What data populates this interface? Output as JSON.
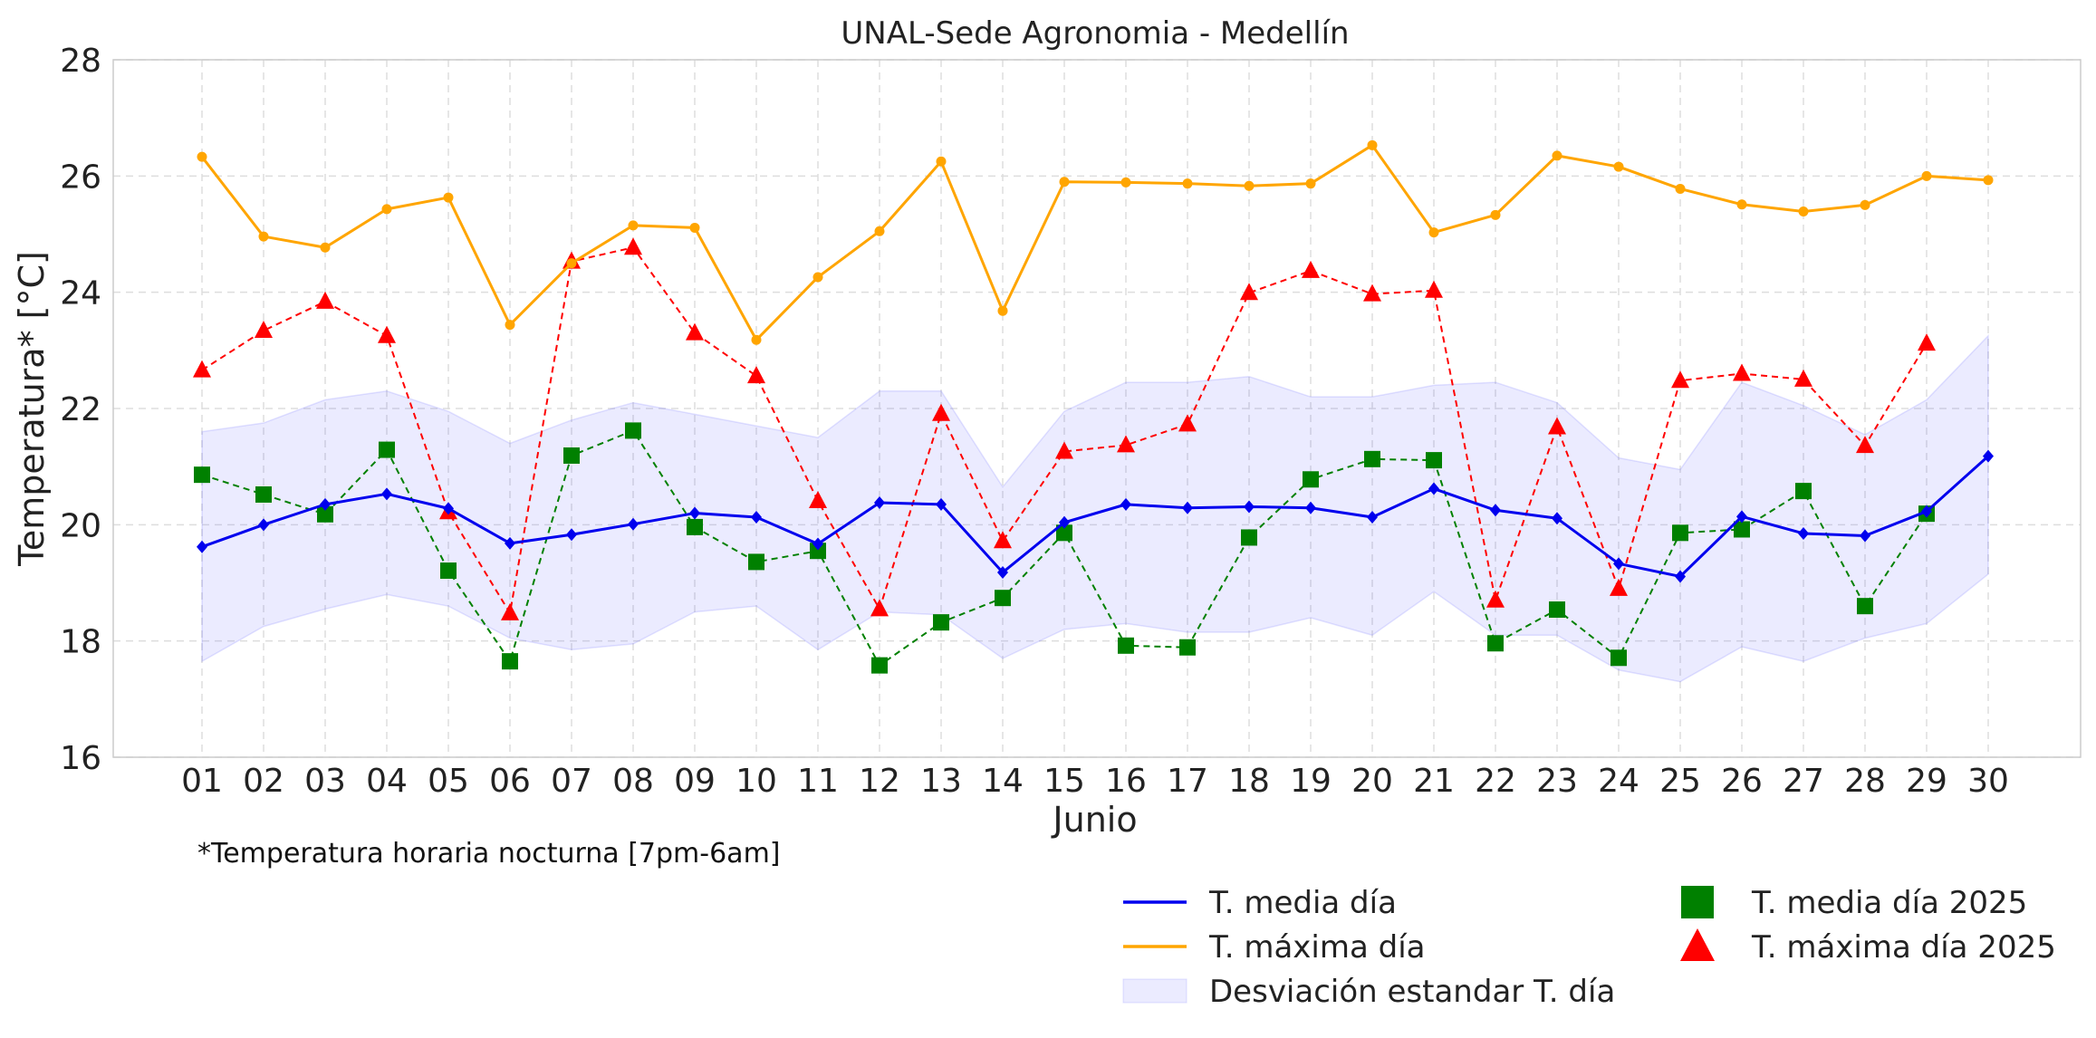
{
  "chart_data": {
    "type": "line",
    "title": "UNAL-Sede Agronomia - Medellín",
    "xlabel": "Junio",
    "ylabel": "Temperatura* [°C]",
    "footnote": "*Temperatura horaria nocturna [7pm-6am]",
    "ylim": [
      16,
      28
    ],
    "yticks": [
      "16",
      "18",
      "20",
      "22",
      "24",
      "26",
      "28"
    ],
    "grid": true,
    "legend_position": "bottom-right",
    "categories": [
      "01",
      "02",
      "03",
      "04",
      "05",
      "06",
      "07",
      "08",
      "09",
      "10",
      "11",
      "12",
      "13",
      "14",
      "15",
      "16",
      "17",
      "18",
      "19",
      "20",
      "21",
      "22",
      "23",
      "24",
      "25",
      "26",
      "27",
      "28",
      "29",
      "30"
    ],
    "band": {
      "name": "Desviación estandar T. día",
      "color": "#6666ff",
      "upper": [
        21.6,
        21.75,
        22.15,
        22.3,
        21.95,
        21.4,
        21.8,
        22.1,
        21.9,
        21.7,
        21.5,
        22.3,
        22.3,
        20.65,
        21.95,
        22.45,
        22.45,
        22.55,
        22.2,
        22.2,
        22.4,
        22.45,
        22.1,
        21.15,
        20.95,
        22.45,
        22.05,
        21.55,
        22.15,
        23.25
      ],
      "lower": [
        17.65,
        18.25,
        18.55,
        18.8,
        18.6,
        18.05,
        17.85,
        17.95,
        18.5,
        18.6,
        17.85,
        18.5,
        18.45,
        17.7,
        18.2,
        18.3,
        18.15,
        18.15,
        18.4,
        18.1,
        18.85,
        18.1,
        18.1,
        17.5,
        17.3,
        17.9,
        17.65,
        18.05,
        18.3,
        19.15
      ]
    },
    "series": [
      {
        "name": "T. media día",
        "color": "#0000ee",
        "style": "solid",
        "marker": "diamond",
        "values": [
          19.62,
          20.0,
          20.35,
          20.53,
          20.28,
          19.68,
          19.83,
          20.01,
          20.2,
          20.13,
          19.67,
          20.38,
          20.35,
          19.18,
          20.04,
          20.35,
          20.29,
          20.31,
          20.29,
          20.13,
          20.62,
          20.25,
          20.11,
          19.33,
          19.11,
          20.14,
          19.85,
          19.81,
          20.23,
          21.18
        ]
      },
      {
        "name": "T. máxima día",
        "color": "#ffa500",
        "style": "solid",
        "marker": "circle",
        "values": [
          26.33,
          24.96,
          24.77,
          25.43,
          25.63,
          23.44,
          24.5,
          25.15,
          25.11,
          23.18,
          24.26,
          25.05,
          26.25,
          23.68,
          25.9,
          25.89,
          25.87,
          25.83,
          25.87,
          26.53,
          25.03,
          25.33,
          26.35,
          26.16,
          25.78,
          25.51,
          25.39,
          25.5,
          26.0,
          25.93
        ]
      },
      {
        "name": "T. media día 2025",
        "color": "#008000",
        "style": "dashed",
        "marker": "square",
        "values": [
          20.86,
          20.52,
          20.18,
          21.29,
          19.21,
          17.65,
          21.19,
          21.62,
          19.96,
          19.36,
          19.55,
          17.58,
          18.32,
          18.74,
          19.86,
          17.92,
          17.89,
          19.78,
          20.78,
          21.13,
          21.11,
          17.96,
          18.54,
          17.71,
          19.86,
          19.92,
          20.58,
          18.6,
          20.19,
          null
        ]
      },
      {
        "name": "T. máxima día 2025",
        "color": "#ff0000",
        "style": "dashed",
        "marker": "triangle",
        "values": [
          22.66,
          23.34,
          23.84,
          23.25,
          20.22,
          18.48,
          24.53,
          24.77,
          23.3,
          22.56,
          20.41,
          18.55,
          21.91,
          19.72,
          21.26,
          21.37,
          21.73,
          23.99,
          24.37,
          23.97,
          24.03,
          18.7,
          21.68,
          18.9,
          22.48,
          22.6,
          22.5,
          21.36,
          23.12,
          null
        ]
      }
    ]
  }
}
